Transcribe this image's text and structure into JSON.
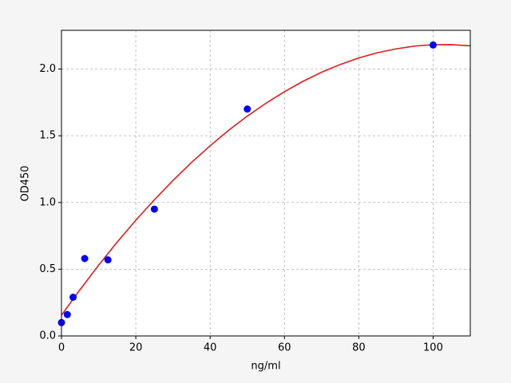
{
  "chart_data": {
    "type": "scatter",
    "xlabel": "ng/ml",
    "ylabel": "OD450",
    "xlim": [
      0,
      110
    ],
    "ylim": [
      0,
      2.29
    ],
    "xticks": [
      0,
      20,
      40,
      60,
      80,
      100
    ],
    "yticks": [
      {
        "value": 0,
        "label": "0.0"
      },
      {
        "value": 0.5,
        "label": "0.5"
      },
      {
        "value": 1,
        "label": "1.0"
      },
      {
        "value": 1.5,
        "label": "1.5"
      },
      {
        "value": 2,
        "label": "2.0"
      }
    ],
    "grid": true,
    "points": {
      "color": "#0000ff",
      "x": [
        0,
        1.56,
        3.125,
        6.25,
        12.5,
        25,
        50,
        100
      ],
      "y": [
        0.1,
        0.16,
        0.29,
        0.58,
        0.57,
        0.95,
        1.7,
        2.18
      ]
    },
    "fit": {
      "color": "#dd1c1c",
      "x": [
        0,
        5,
        10,
        15,
        20,
        25,
        30,
        35,
        40,
        45,
        50,
        55,
        60,
        65,
        70,
        75,
        80,
        85,
        90,
        95,
        100,
        105,
        110
      ],
      "y": [
        0.155,
        0.347,
        0.53,
        0.703,
        0.867,
        1.02,
        1.165,
        1.3,
        1.425,
        1.541,
        1.647,
        1.743,
        1.83,
        1.908,
        1.976,
        2.034,
        2.083,
        2.122,
        2.151,
        2.172,
        2.182,
        2.183,
        2.174
      ]
    }
  }
}
